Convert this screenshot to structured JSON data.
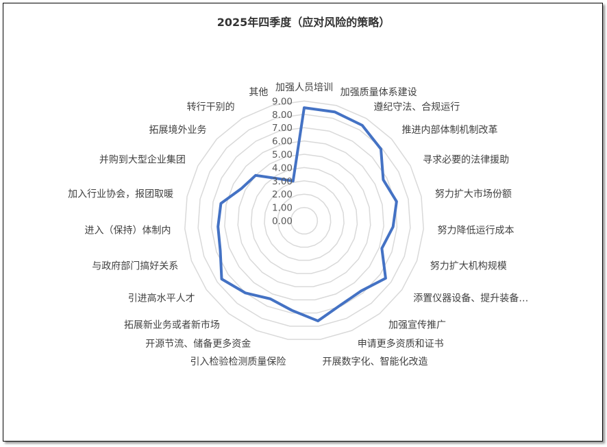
{
  "chart_data": {
    "type": "radar",
    "title": "2025年四季度（应对风险的策略）",
    "categories": [
      "加强人员培训",
      "加强质量体系建设",
      "遵纪守法、合规运行",
      "推进内部体制机制改革",
      "寻求必要的法律援助",
      "努力扩大市场份额",
      "努力降低运行成本",
      "努力扩大机构规模",
      "添置仪器设备、提升装备…",
      "加强宣传推广",
      "申请更多资质和证书",
      "开展数字化、智能化改造",
      "引入检验检测质量保险",
      "开源节流、储备更多资金",
      "拓展新业务或者新市场",
      "引进高水平人才",
      "与政府部门搞好关系",
      "进入（保持）体制内",
      "加入行业协会，报团取暖",
      "并购到大型企业集团",
      "拓展境外业务",
      "转行干别的",
      "其他"
    ],
    "series": [
      {
        "values": [
          8.5,
          8.5,
          8.4,
          7.9,
          6.7,
          7.1,
          6.7,
          6.2,
          7.5,
          6.8,
          6.9,
          7.6,
          6.8,
          6.4,
          7.0,
          7.6,
          6.7,
          6.5,
          6.4,
          5.3,
          5.0,
          3.7,
          3.1
        ],
        "color": "#4472C4"
      }
    ],
    "axis": {
      "min": 0,
      "max": 9,
      "step": 1,
      "tick_labels": [
        "0.00",
        "1.00",
        "2.00",
        "3.00",
        "4.00",
        "5.00",
        "6.00",
        "7.00",
        "8.00",
        "9.00"
      ]
    },
    "grid": true,
    "grid_color": "#d9d9d9",
    "legend": "none"
  }
}
